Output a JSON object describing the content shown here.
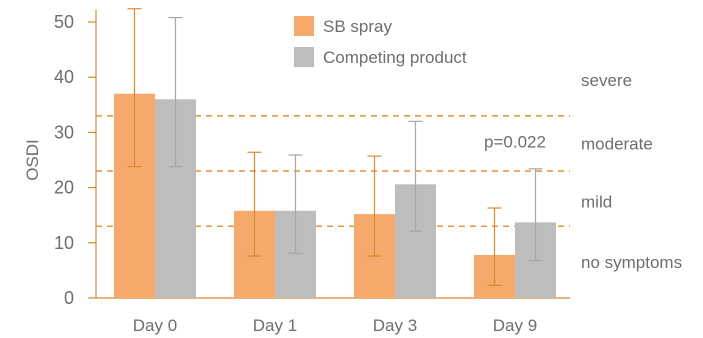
{
  "chart_data": {
    "type": "bar",
    "categories": [
      "Day 0",
      "Day 1",
      "Day 3",
      "Day 9"
    ],
    "series": [
      {
        "name": "SB spray",
        "values": [
          37,
          15.8,
          15.2,
          7.8
        ],
        "error_low": [
          23.8,
          7.6,
          7.6,
          2.3
        ],
        "error_high": [
          52.4,
          26.4,
          25.7,
          16.3
        ],
        "color": "#f5a96a",
        "error_color": "#d98a2e"
      },
      {
        "name": "Competing product",
        "values": [
          36,
          15.8,
          20.6,
          13.7
        ],
        "error_low": [
          23.8,
          8.1,
          12.1,
          6.8
        ],
        "error_high": [
          50.8,
          25.9,
          32.0,
          23.4
        ],
        "color": "#bdbdbd",
        "error_color": "#a6a6a6"
      }
    ],
    "ylabel": "OSDI",
    "xlabel": "",
    "ylim": [
      0,
      50
    ],
    "yticks": [
      0,
      10,
      20,
      30,
      40,
      50
    ],
    "thresholds": [
      {
        "value": 13,
        "color": "#e29a45"
      },
      {
        "value": 23,
        "color": "#e29a45"
      },
      {
        "value": 33,
        "color": "#e29a45"
      }
    ],
    "zones": [
      {
        "label": "no symptoms",
        "y": 6.5
      },
      {
        "label": "mild",
        "y": 17.5
      },
      {
        "label": "moderate",
        "y": 28
      },
      {
        "label": "severe",
        "y": 39.5
      }
    ],
    "annotation": {
      "text": "p=0.022",
      "category": "Day 9",
      "y": 26.5
    },
    "legend": {
      "placement": "top-center"
    },
    "grid": false,
    "axis_color": "#d98a2e"
  }
}
